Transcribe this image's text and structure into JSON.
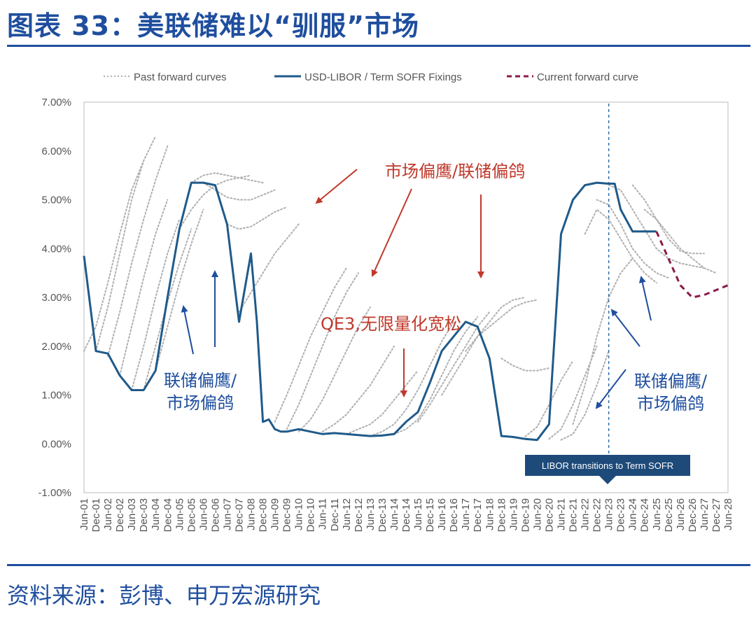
{
  "header": {
    "title": "图表 33：美联储难以“驯服”市场"
  },
  "footer": {
    "source": "资料来源：彭博、申万宏源研究"
  },
  "colors": {
    "brand": "#1f4e9e",
    "fixings": "#1f5a8a",
    "past": "#b0b0b0",
    "current": "#8b1a4a",
    "red": "#c0392b",
    "banner": "#1e4a7a"
  },
  "chart_data": {
    "type": "line",
    "title": "",
    "xlabel": "",
    "ylabel": "",
    "ylim": [
      -0.01,
      0.07
    ],
    "yticks": [
      "7.00%",
      "6.00%",
      "5.00%",
      "4.00%",
      "3.00%",
      "2.00%",
      "1.00%",
      "0.00%",
      "-1.00%"
    ],
    "xticks": [
      "Jun-01",
      "Dec-01",
      "Jun-02",
      "Dec-02",
      "Jun-03",
      "Dec-03",
      "Jun-04",
      "Dec-04",
      "Jun-05",
      "Dec-05",
      "Jun-06",
      "Dec-06",
      "Jun-07",
      "Dec-07",
      "Jun-08",
      "Dec-08",
      "Jun-09",
      "Dec-09",
      "Jun-10",
      "Dec-10",
      "Jun-11",
      "Dec-11",
      "Jun-12",
      "Dec-12",
      "Jun-13",
      "Dec-13",
      "Jun-14",
      "Dec-14",
      "Jun-15",
      "Dec-15",
      "Jun-16",
      "Dec-16",
      "Jun-17",
      "Dec-17",
      "Jun-18",
      "Dec-18",
      "Jun-19",
      "Dec-19",
      "Jun-20",
      "Dec-20",
      "Jun-21",
      "Dec-21",
      "Jun-22",
      "Dec-22",
      "Jun-23",
      "Dec-23",
      "Jun-24",
      "Dec-24",
      "Jun-25",
      "Dec-25",
      "Jun-26",
      "Dec-26",
      "Jun-27",
      "Dec-27",
      "Jun-28"
    ],
    "legend": {
      "placement": "top",
      "items": [
        {
          "label": "Past forward curves",
          "style": "dotted"
        },
        {
          "label": "USD-LIBOR / Term SOFR Fixings",
          "style": "solid"
        },
        {
          "label": "Current forward curve",
          "style": "dashed"
        }
      ]
    },
    "series": [
      {
        "name": "USD-LIBOR / Term SOFR Fixings",
        "x": [
          0,
          1,
          2,
          3,
          4,
          5,
          6,
          7,
          8,
          9,
          10,
          11,
          12,
          13,
          14,
          14.5,
          15,
          15.5,
          16,
          16.5,
          17,
          18,
          19,
          20,
          21,
          22,
          23,
          24,
          25,
          26,
          27,
          28,
          29,
          30,
          31,
          32,
          33,
          34,
          35,
          35.5,
          36,
          37,
          38,
          39,
          40,
          41,
          42,
          43,
          44,
          44.5,
          45,
          46,
          47,
          48
        ],
        "values": [
          3.85,
          1.9,
          1.85,
          1.4,
          1.1,
          1.1,
          1.5,
          3.0,
          4.4,
          5.35,
          5.35,
          5.3,
          4.5,
          2.5,
          3.9,
          2.5,
          0.45,
          0.5,
          0.3,
          0.25,
          0.25,
          0.3,
          0.25,
          0.2,
          0.22,
          0.2,
          0.18,
          0.16,
          0.17,
          0.2,
          0.45,
          0.65,
          1.25,
          1.9,
          2.2,
          2.5,
          2.4,
          1.75,
          0.16,
          0.15,
          0.14,
          0.1,
          0.08,
          0.4,
          4.3,
          5.0,
          5.3,
          5.35,
          5.33,
          5.33,
          4.8,
          4.35,
          4.35,
          4.35
        ],
        "unit": "%"
      },
      {
        "name": "Current forward curve",
        "x": [
          48,
          49,
          50,
          51,
          52,
          53,
          54
        ],
        "values": [
          4.35,
          3.8,
          3.25,
          3.0,
          3.05,
          3.15,
          3.25
        ],
        "unit": "%"
      }
    ],
    "past_forward_curves": [
      {
        "x": [
          0,
          1,
          2,
          3,
          4,
          5
        ],
        "values": [
          1.9,
          2.4,
          3.3,
          4.3,
          5.2,
          5.8
        ]
      },
      {
        "x": [
          1,
          2,
          3,
          4,
          5,
          6
        ],
        "values": [
          1.9,
          2.8,
          3.9,
          5.0,
          5.8,
          6.3
        ]
      },
      {
        "x": [
          2,
          3,
          4,
          5,
          6,
          7
        ],
        "values": [
          1.8,
          2.7,
          3.7,
          4.6,
          5.4,
          6.1
        ]
      },
      {
        "x": [
          3,
          4,
          5,
          6,
          7
        ],
        "values": [
          1.4,
          2.4,
          3.4,
          4.3,
          5.0
        ]
      },
      {
        "x": [
          4,
          5,
          6,
          7,
          8
        ],
        "values": [
          1.1,
          2.0,
          3.0,
          3.9,
          4.6
        ]
      },
      {
        "x": [
          5,
          6,
          7,
          8,
          9
        ],
        "values": [
          1.1,
          2.0,
          2.9,
          3.7,
          4.4
        ]
      },
      {
        "x": [
          6,
          7,
          8,
          9,
          10
        ],
        "values": [
          1.5,
          2.4,
          3.3,
          4.1,
          4.8
        ]
      },
      {
        "x": [
          8,
          9,
          10,
          11,
          12,
          13,
          14
        ],
        "values": [
          4.4,
          4.8,
          5.1,
          5.3,
          5.4,
          5.45,
          5.5
        ]
      },
      {
        "x": [
          9,
          10,
          11,
          12,
          13,
          14,
          15
        ],
        "values": [
          5.35,
          5.5,
          5.55,
          5.5,
          5.45,
          5.4,
          5.35
        ]
      },
      {
        "x": [
          10,
          11,
          12,
          13,
          14,
          15,
          16
        ],
        "values": [
          5.35,
          5.2,
          5.05,
          5.0,
          5.0,
          5.1,
          5.2
        ]
      },
      {
        "x": [
          12,
          13,
          14,
          15,
          16,
          17
        ],
        "values": [
          4.5,
          4.4,
          4.45,
          4.6,
          4.75,
          4.85
        ]
      },
      {
        "x": [
          13,
          14,
          15,
          16,
          17,
          18
        ],
        "values": [
          2.7,
          3.1,
          3.5,
          3.9,
          4.2,
          4.5
        ]
      },
      {
        "x": [
          16,
          17,
          18,
          19,
          20,
          21,
          22
        ],
        "values": [
          0.45,
          1.0,
          1.6,
          2.2,
          2.7,
          3.2,
          3.6
        ]
      },
      {
        "x": [
          17,
          18,
          19,
          20,
          21,
          22,
          23
        ],
        "values": [
          0.3,
          0.8,
          1.4,
          2.0,
          2.6,
          3.1,
          3.5
        ]
      },
      {
        "x": [
          18,
          19,
          20,
          21,
          22,
          23,
          24
        ],
        "values": [
          0.25,
          0.5,
          0.9,
          1.4,
          1.9,
          2.4,
          2.8
        ]
      },
      {
        "x": [
          20,
          21,
          22,
          23,
          24,
          25,
          26
        ],
        "values": [
          0.25,
          0.4,
          0.6,
          0.9,
          1.2,
          1.6,
          2.0
        ]
      },
      {
        "x": [
          22,
          23,
          24,
          25,
          26,
          27,
          28
        ],
        "values": [
          0.2,
          0.3,
          0.4,
          0.6,
          0.9,
          1.2,
          1.5
        ]
      },
      {
        "x": [
          24,
          25,
          26,
          27,
          28,
          29,
          30,
          31
        ],
        "values": [
          0.16,
          0.25,
          0.4,
          0.7,
          1.1,
          1.6,
          2.1,
          2.5
        ]
      },
      {
        "x": [
          26,
          27,
          28,
          29,
          30,
          31,
          32,
          33
        ],
        "values": [
          0.2,
          0.3,
          0.5,
          0.9,
          1.4,
          1.9,
          2.3,
          2.6
        ]
      },
      {
        "x": [
          28,
          29,
          30,
          31,
          32,
          33,
          34
        ],
        "values": [
          0.45,
          0.8,
          1.2,
          1.6,
          2.0,
          2.4,
          2.7
        ]
      },
      {
        "x": [
          30,
          31,
          32,
          33,
          34,
          35,
          36,
          37
        ],
        "values": [
          1.0,
          1.4,
          1.8,
          2.2,
          2.5,
          2.8,
          2.95,
          3.0
        ]
      },
      {
        "x": [
          32,
          33,
          34,
          35,
          36,
          37,
          38
        ],
        "values": [
          1.9,
          2.2,
          2.4,
          2.6,
          2.8,
          2.9,
          2.95
        ]
      },
      {
        "x": [
          35,
          36,
          37,
          38,
          39
        ],
        "values": [
          1.75,
          1.6,
          1.5,
          1.5,
          1.55
        ]
      },
      {
        "x": [
          37,
          38,
          39,
          40,
          41
        ],
        "values": [
          0.15,
          0.35,
          0.8,
          1.3,
          1.7
        ]
      },
      {
        "x": [
          39,
          40,
          41,
          42,
          43
        ],
        "values": [
          0.1,
          0.3,
          0.8,
          1.4,
          2.0
        ]
      },
      {
        "x": [
          40,
          41,
          42,
          43,
          44
        ],
        "values": [
          0.08,
          0.2,
          0.6,
          1.2,
          1.9
        ]
      },
      {
        "x": [
          41,
          42,
          43,
          44,
          45,
          46
        ],
        "values": [
          0.4,
          1.2,
          2.2,
          3.0,
          3.5,
          3.8
        ]
      },
      {
        "x": [
          42,
          43,
          44,
          45,
          46,
          47,
          48
        ],
        "values": [
          4.3,
          4.8,
          4.6,
          4.2,
          3.8,
          3.5,
          3.3
        ]
      },
      {
        "x": [
          43,
          44,
          45,
          46,
          47,
          48,
          49
        ],
        "values": [
          5.0,
          4.9,
          4.5,
          4.0,
          3.7,
          3.5,
          3.4
        ]
      },
      {
        "x": [
          44,
          45,
          46,
          47,
          48,
          49,
          50,
          51,
          52
        ],
        "values": [
          5.3,
          5.2,
          4.8,
          4.4,
          4.0,
          3.8,
          3.7,
          3.65,
          3.6
        ]
      },
      {
        "x": [
          46,
          47,
          48,
          49,
          50,
          51,
          52
        ],
        "values": [
          5.3,
          5.0,
          4.6,
          4.2,
          3.95,
          3.9,
          3.9
        ]
      },
      {
        "x": [
          47,
          48,
          49,
          50,
          51,
          52,
          53
        ],
        "values": [
          4.8,
          4.6,
          4.3,
          4.0,
          3.8,
          3.6,
          3.5
        ]
      }
    ],
    "annotations": {
      "red_top": "市场偏鹰/联储偏鸽",
      "red_mid": "QE3,无限量化宽松",
      "blue_left_1": "联储偏鹰/",
      "blue_left_2": "市场偏鸽",
      "blue_right_1": "联储偏鹰/",
      "blue_right_2": "市场偏鸽",
      "banner": "LIBOR transitions to Term SOFR"
    },
    "vertical_line": {
      "x": "Jun-23",
      "style": "dashed"
    }
  }
}
